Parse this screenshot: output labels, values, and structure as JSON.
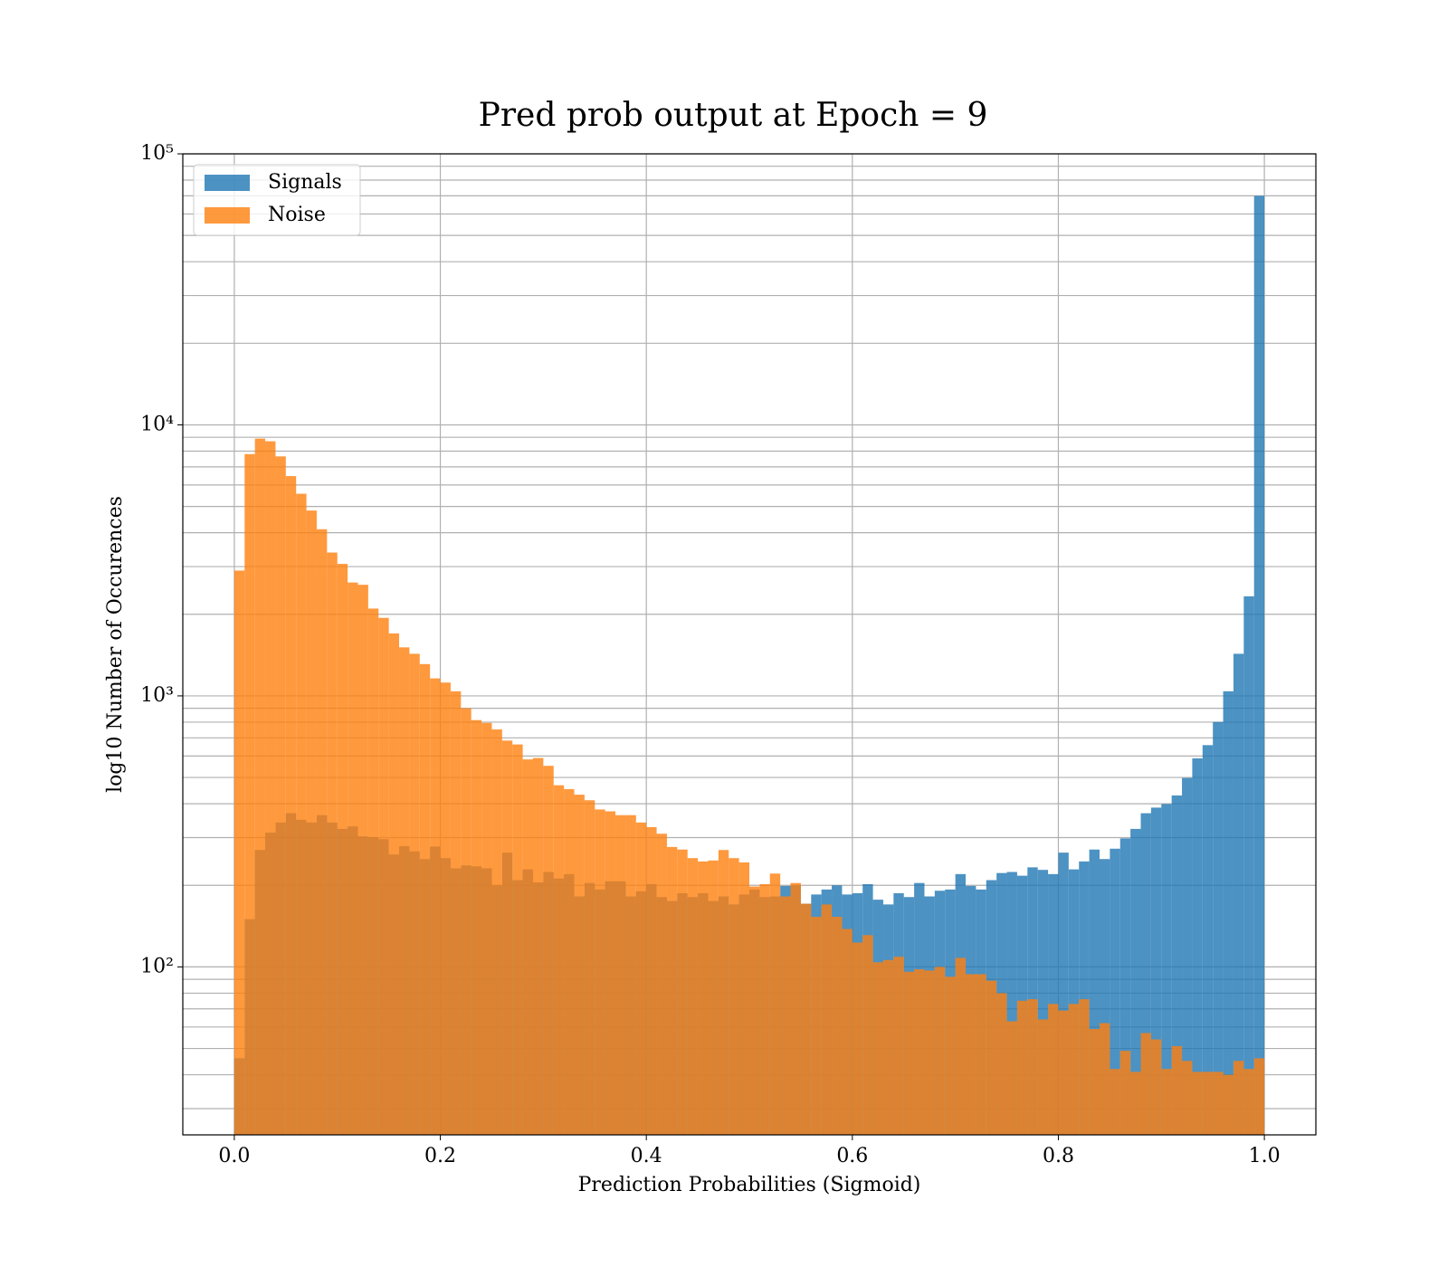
{
  "chart_data": {
    "type": "histogram",
    "title": "Pred prob output at Epoch = 9",
    "xlabel": "Prediction Probabilities (Sigmoid)",
    "ylabel": "log10 Number of Occurences",
    "bins": [
      0,
      0.01,
      0.02,
      0.03,
      0.04,
      0.05,
      0.06,
      0.07,
      0.08,
      0.09,
      0.1,
      0.11,
      0.12,
      0.13,
      0.14,
      0.15,
      0.16,
      0.17,
      0.18,
      0.19,
      0.2,
      0.21,
      0.22,
      0.23,
      0.24,
      0.25,
      0.26,
      0.27,
      0.28,
      0.29,
      0.3,
      0.31,
      0.32,
      0.33,
      0.34,
      0.35,
      0.36,
      0.37,
      0.38,
      0.39,
      0.4,
      0.41,
      0.42,
      0.43,
      0.44,
      0.45,
      0.46,
      0.47,
      0.48,
      0.49,
      0.5,
      0.51,
      0.52,
      0.53,
      0.54,
      0.55,
      0.56,
      0.57,
      0.58,
      0.59,
      0.6,
      0.61,
      0.62,
      0.63,
      0.64,
      0.65,
      0.66,
      0.67,
      0.68,
      0.69,
      0.7,
      0.71,
      0.72,
      0.73,
      0.74,
      0.75,
      0.76,
      0.77,
      0.78,
      0.79,
      0.8,
      0.81,
      0.82,
      0.83,
      0.84,
      0.85,
      0.86,
      0.87,
      0.88,
      0.89,
      0.9,
      0.91,
      0.92,
      0.93,
      0.94,
      0.95,
      0.96,
      0.97,
      0.98,
      0.99,
      1
    ],
    "series": [
      {
        "name": "Signals",
        "color": "#1f77b4",
        "values": [
          46,
          150,
          270,
          313,
          341,
          369,
          349,
          341,
          363,
          341,
          323,
          330,
          303,
          301,
          296,
          260,
          279,
          267,
          250,
          278,
          252,
          231,
          237,
          235,
          231,
          200,
          264,
          209,
          229,
          205,
          224,
          212,
          220,
          182,
          204,
          193,
          207,
          207,
          182,
          190,
          202,
          181,
          175,
          187,
          181,
          187,
          175,
          182,
          170,
          185,
          193,
          181,
          182,
          199,
          200,
          171,
          185,
          193,
          200,
          185,
          187,
          202,
          177,
          170,
          187,
          181,
          204,
          182,
          191,
          193,
          220,
          199,
          193,
          209,
          222,
          224,
          217,
          233,
          228,
          220,
          264,
          229,
          245,
          271,
          250,
          273,
          298,
          323,
          369,
          387,
          399,
          429,
          498,
          588,
          658,
          801,
          1040,
          1430,
          2330,
          70000
        ]
      },
      {
        "name": "Noise",
        "color": "#ff7f0e",
        "values": [
          2900,
          7800,
          8900,
          8700,
          7650,
          6470,
          5570,
          4830,
          4120,
          3380,
          3070,
          2620,
          2570,
          2100,
          1940,
          1700,
          1510,
          1430,
          1310,
          1160,
          1120,
          1040,
          900,
          814,
          795,
          752,
          684,
          662,
          583,
          590,
          552,
          468,
          453,
          432,
          412,
          381,
          375,
          363,
          363,
          341,
          328,
          310,
          277,
          271,
          252,
          245,
          247,
          270,
          252,
          243,
          198,
          202,
          221,
          182,
          204,
          171,
          153,
          170,
          153,
          138,
          123,
          131,
          104,
          106,
          109,
          96,
          98,
          97,
          100,
          92,
          108,
          94,
          94,
          89,
          80,
          63,
          75,
          76,
          64,
          73,
          69,
          73,
          76,
          59,
          62,
          42,
          49,
          41,
          57,
          54,
          42,
          51,
          45,
          41,
          41,
          41,
          40,
          45,
          42,
          46
        ]
      }
    ],
    "alpha": 0.8,
    "xlim": [
      -0.05,
      1.05
    ],
    "xticks": [
      {
        "value": 0,
        "label": "0.0"
      },
      0.2,
      0.4,
      0.6,
      0.8,
      {
        "value": 1,
        "label": "1.0"
      }
    ],
    "ylim": [
      24,
      100000
    ],
    "yscale": "log",
    "yticks": [
      {
        "value": 100,
        "label": "10²"
      },
      {
        "value": 1000,
        "label": "10³"
      },
      {
        "value": 10000,
        "label": "10⁴"
      },
      {
        "value": 100000,
        "label": "10⁵"
      }
    ],
    "yminorticks": [
      30,
      40,
      50,
      60,
      70,
      80,
      90,
      200,
      300,
      400,
      500,
      600,
      700,
      800,
      900,
      2000,
      3000,
      4000,
      5000,
      6000,
      7000,
      8000,
      9000,
      20000,
      30000,
      40000,
      50000,
      60000,
      70000,
      80000,
      90000
    ],
    "grid": true,
    "legend": "upper left"
  }
}
